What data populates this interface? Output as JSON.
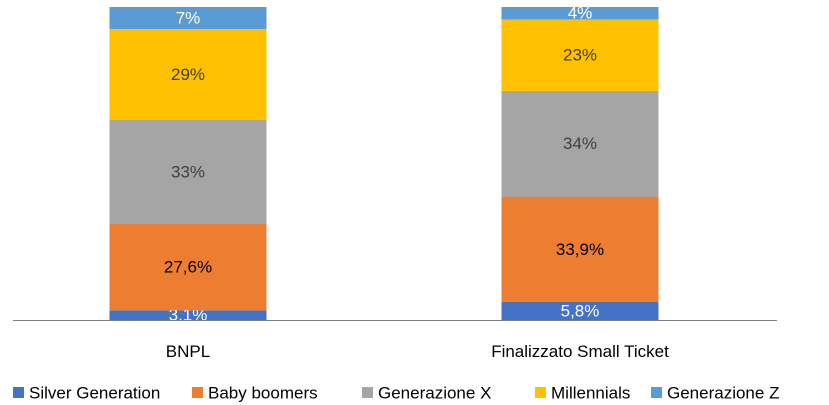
{
  "chart_data": {
    "type": "bar",
    "stacked": true,
    "percent_stacked": true,
    "categories": [
      "BNPL",
      "Finalizzato Small Ticket"
    ],
    "series": [
      {
        "name": "Silver Generation",
        "values": [
          3.1,
          5.8
        ],
        "labels": [
          "3,1%",
          "5,8%"
        ],
        "color": "#4472C4",
        "label_color": "#ffffff"
      },
      {
        "name": "Baby boomers",
        "values": [
          27.6,
          33.9
        ],
        "labels": [
          "27,6%",
          "33,9%"
        ],
        "color": "#ED7D31",
        "label_color": "#000000"
      },
      {
        "name": "Generazione X",
        "values": [
          33,
          34
        ],
        "labels": [
          "33%",
          "34%"
        ],
        "color": "#A5A5A5",
        "label_color": "#404040"
      },
      {
        "name": "Millennials",
        "values": [
          29,
          23
        ],
        "labels": [
          "29%",
          "23%"
        ],
        "color": "#FFC000",
        "label_color": "#404040"
      },
      {
        "name": "Generazione Z",
        "values": [
          7,
          4
        ],
        "labels": [
          "7%",
          "4%"
        ],
        "color": "#5B9BD5",
        "label_color": "#ffffff"
      }
    ],
    "legend": "bottom",
    "grid": false,
    "ylim": [
      0,
      100
    ]
  }
}
